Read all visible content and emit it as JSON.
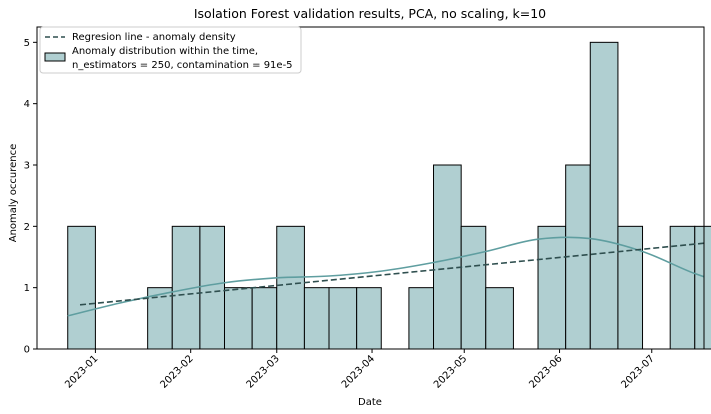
{
  "chart_data": {
    "type": "bar",
    "title": "Isolation Forest validation results, PCA, no scaling, k=10",
    "xlabel": "Date",
    "ylabel": "Anomaly occurence",
    "ylim": [
      0,
      5.25
    ],
    "yticks": [
      0,
      1,
      2,
      3,
      4,
      5
    ],
    "xlim": [
      "2022-12-13",
      "2023-07-18"
    ],
    "xticks": [
      {
        "date": "2023-01-01",
        "label": "2023-01"
      },
      {
        "date": "2023-02-01",
        "label": "2023-02"
      },
      {
        "date": "2023-03-01",
        "label": "2023-03"
      },
      {
        "date": "2023-04-01",
        "label": "2023-04"
      },
      {
        "date": "2023-05-01",
        "label": "2023-05"
      },
      {
        "date": "2023-06-01",
        "label": "2023-06"
      },
      {
        "date": "2023-07-01",
        "label": "2023-07"
      }
    ],
    "grid": false,
    "legend_position": "upper-left",
    "bins": [
      {
        "start": "2022-12-23",
        "end": "2023-01-01",
        "count": 2
      },
      {
        "start": "2023-01-01",
        "end": "2023-01-09",
        "count": 0
      },
      {
        "start": "2023-01-09",
        "end": "2023-01-18",
        "count": 0
      },
      {
        "start": "2023-01-18",
        "end": "2023-01-26",
        "count": 1
      },
      {
        "start": "2023-01-26",
        "end": "2023-02-04",
        "count": 2
      },
      {
        "start": "2023-02-04",
        "end": "2023-02-12",
        "count": 2
      },
      {
        "start": "2023-02-12",
        "end": "2023-02-21",
        "count": 1
      },
      {
        "start": "2023-02-21",
        "end": "2023-03-01",
        "count": 1
      },
      {
        "start": "2023-03-01",
        "end": "2023-03-10",
        "count": 2
      },
      {
        "start": "2023-03-10",
        "end": "2023-03-18",
        "count": 1
      },
      {
        "start": "2023-03-18",
        "end": "2023-03-27",
        "count": 1
      },
      {
        "start": "2023-03-27",
        "end": "2023-04-04",
        "count": 1
      },
      {
        "start": "2023-04-04",
        "end": "2023-04-13",
        "count": 0
      },
      {
        "start": "2023-04-13",
        "end": "2023-04-21",
        "count": 1
      },
      {
        "start": "2023-04-21",
        "end": "2023-04-30",
        "count": 3
      },
      {
        "start": "2023-04-30",
        "end": "2023-05-08",
        "count": 2
      },
      {
        "start": "2023-05-08",
        "end": "2023-05-17",
        "count": 1
      },
      {
        "start": "2023-05-17",
        "end": "2023-05-25",
        "count": 0
      },
      {
        "start": "2023-05-25",
        "end": "2023-06-03",
        "count": 2
      },
      {
        "start": "2023-06-03",
        "end": "2023-06-11",
        "count": 3
      },
      {
        "start": "2023-06-11",
        "end": "2023-06-20",
        "count": 5
      },
      {
        "start": "2023-06-20",
        "end": "2023-06-28",
        "count": 2
      },
      {
        "start": "2023-06-28",
        "end": "2023-07-07",
        "count": 0
      },
      {
        "start": "2023-07-07",
        "end": "2023-07-15",
        "count": 2
      },
      {
        "start": "2023-07-15",
        "end": "2023-07-24",
        "count": 2
      }
    ],
    "regression_line": {
      "name": "Regresion line - anomaly density",
      "points": [
        {
          "date": "2022-12-27",
          "y": 0.72
        },
        {
          "date": "2023-07-23",
          "y": 1.75
        }
      ],
      "color": "#2f4f4f",
      "style": "dashed"
    },
    "density_curve": {
      "points": [
        {
          "date": "2022-12-23",
          "y": 0.54
        },
        {
          "date": "2023-01-09",
          "y": 0.75
        },
        {
          "date": "2023-01-26",
          "y": 0.93
        },
        {
          "date": "2023-02-12",
          "y": 1.08
        },
        {
          "date": "2023-03-01",
          "y": 1.16
        },
        {
          "date": "2023-03-18",
          "y": 1.19
        },
        {
          "date": "2023-04-04",
          "y": 1.27
        },
        {
          "date": "2023-04-21",
          "y": 1.41
        },
        {
          "date": "2023-05-08",
          "y": 1.59
        },
        {
          "date": "2023-05-25",
          "y": 1.79
        },
        {
          "date": "2023-06-11",
          "y": 1.8
        },
        {
          "date": "2023-06-28",
          "y": 1.59
        },
        {
          "date": "2023-07-15",
          "y": 1.23
        },
        {
          "date": "2023-07-31",
          "y": 0.98
        }
      ],
      "color": "#5f9ea0"
    },
    "histogram_series": {
      "name": "Anomaly distribution within the time,\nn_estimators = 250, contamination = 91e-5",
      "fill_color": "#b0cfd1",
      "edge_color": "#000000"
    }
  },
  "legend": {
    "regression_label": "Regresion line - anomaly density",
    "histogram_label_line1": "Anomaly distribution within the time,",
    "histogram_label_line2": "n_estimators = 250, contamination = 91e-5"
  }
}
